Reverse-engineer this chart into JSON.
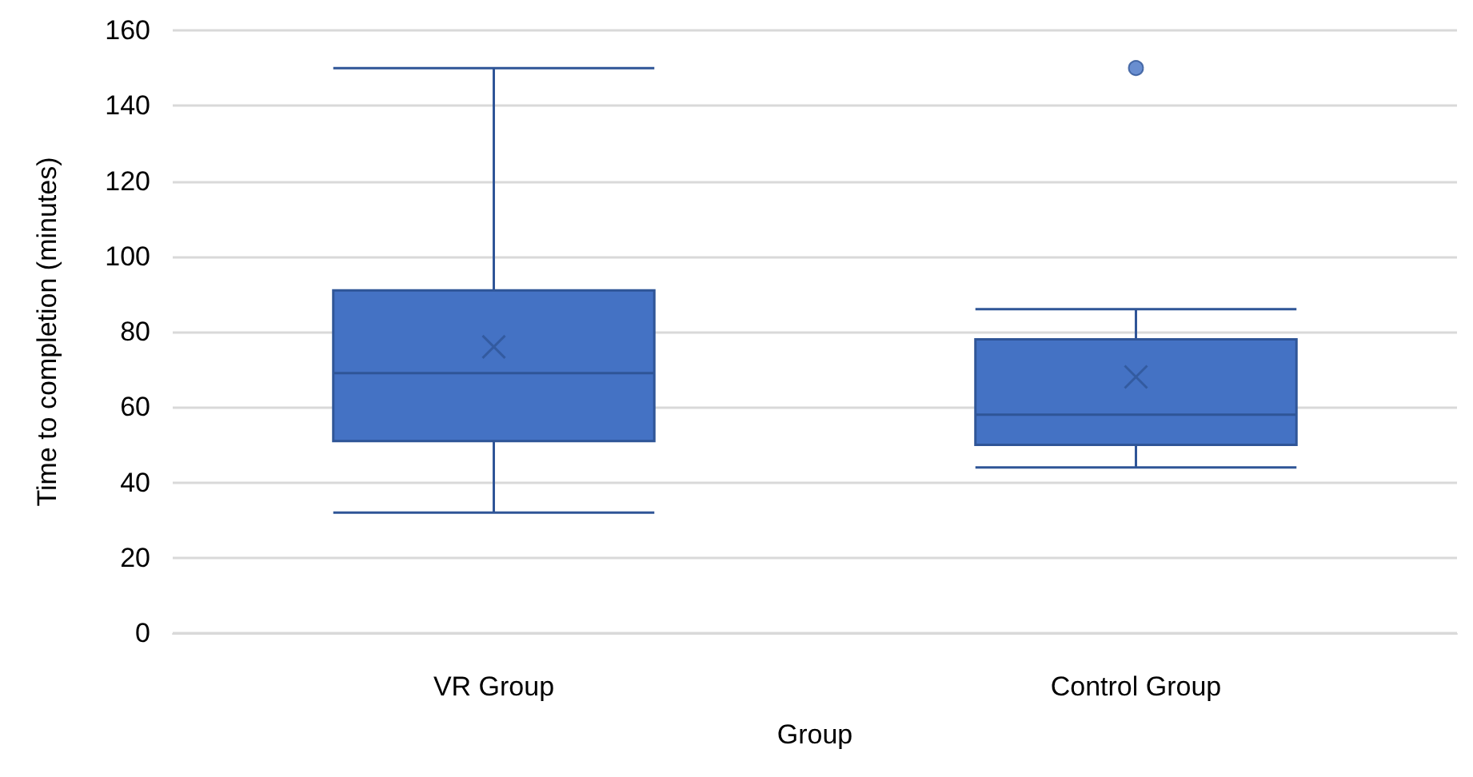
{
  "chart_data": {
    "type": "box",
    "xlabel": "Group",
    "ylabel": "Time to completion (minutes)",
    "categories": [
      "VR Group",
      "Control Group"
    ],
    "color": "#4472c4",
    "boxes": [
      {
        "low": 32,
        "q1": 51,
        "median": 69,
        "q3": 91,
        "high": 150,
        "mean": 76
      },
      {
        "low": 44,
        "q1": 50,
        "median": 58,
        "q3": 78,
        "high": 86,
        "mean": 68,
        "outliers": [
          150
        ]
      }
    ],
    "ylim": [
      0,
      160
    ],
    "yticks": [
      0,
      20,
      40,
      60,
      80,
      100,
      120,
      140,
      160
    ],
    "grid": "y"
  }
}
